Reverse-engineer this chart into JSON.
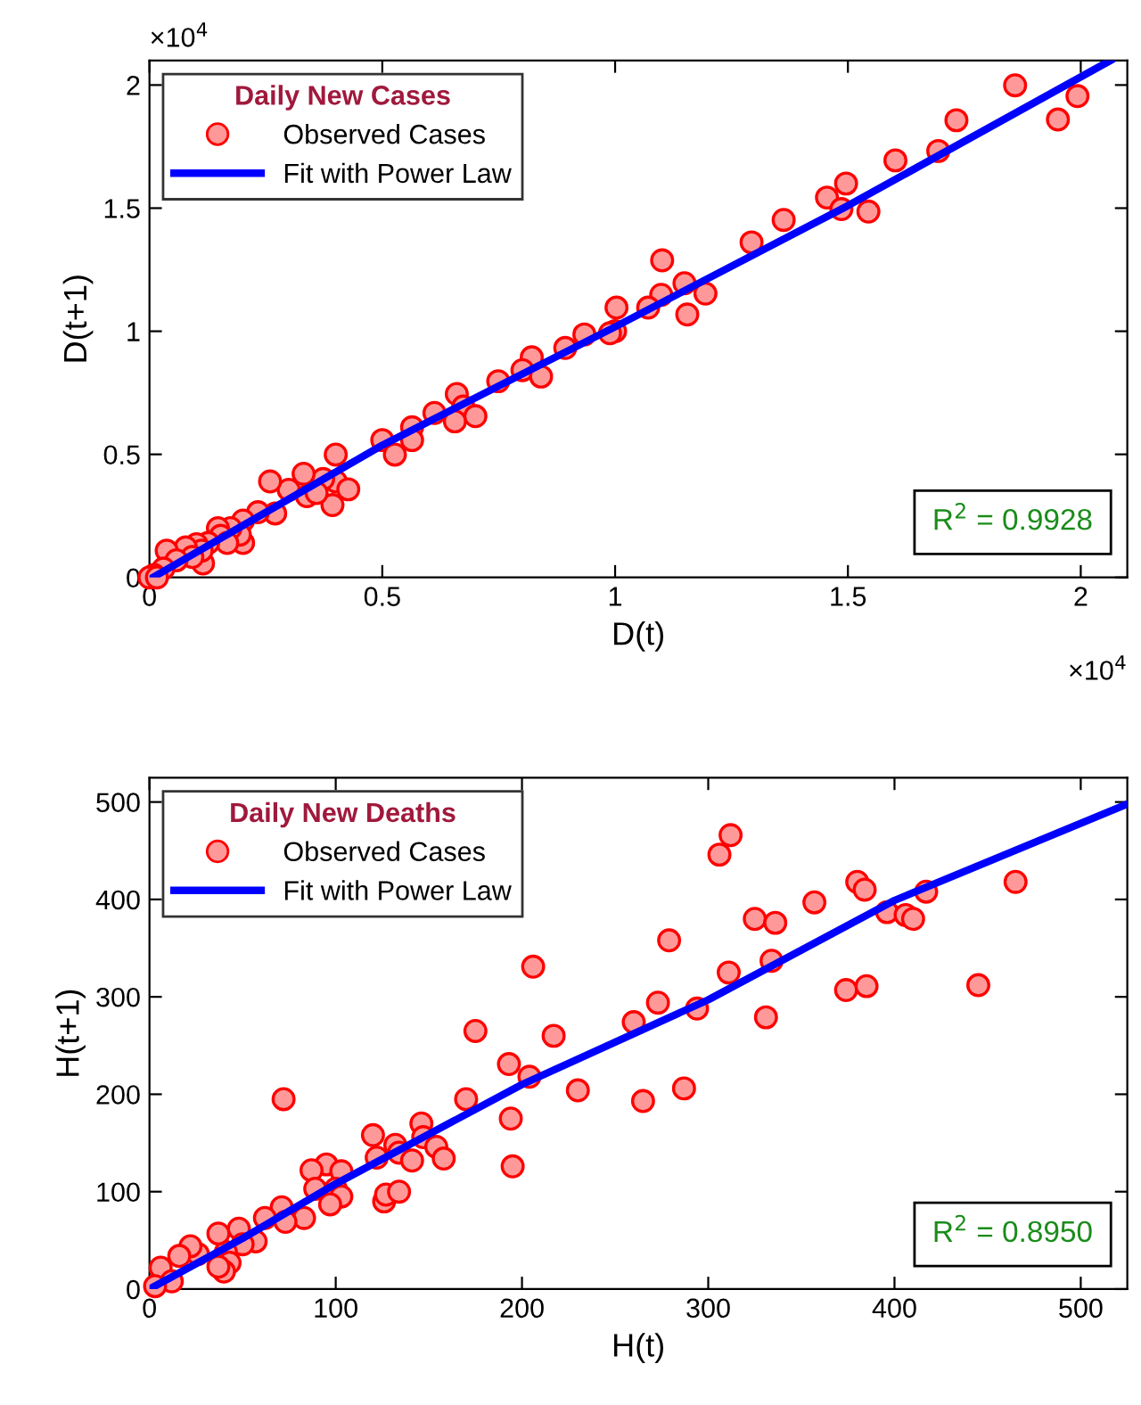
{
  "chart_data": [
    {
      "type": "scatter",
      "xlabel": "D(t)",
      "ylabel": "D(t+1)",
      "legend_title": "Daily New Cases",
      "legend": "top left",
      "grid": false,
      "xlim": [
        0,
        2.1
      ],
      "ylim": [
        0,
        2.1
      ],
      "xticks": [
        0,
        0.5,
        1,
        1.5,
        2
      ],
      "yticks": [
        0,
        0.5,
        1,
        1.5,
        2
      ],
      "annotations": [
        "×10$^{4}$",
        "×10$^{4}$",
        "R$^{2}$ = 0.9928"
      ],
      "series": [
        {
          "name": "Observed Cases",
          "marker": "circle",
          "color": "#ff9999",
          "x": [
            1.859,
            1.993,
            1.951,
            1.733,
            1.694,
            1.602,
            1.496,
            1.455,
            1.486,
            1.544,
            1.362,
            1.293,
            1.101,
            1.149,
            1.099,
            1.194,
            1.071,
            1.155,
            1.003,
            1.0,
            0.989,
            0.934,
            0.893,
            0.821,
            0.801,
            0.841,
            0.749,
            0.66,
            0.674,
            0.656,
            0.7,
            0.612,
            0.564,
            0.564,
            0.5,
            0.527,
            0.4,
            0.4,
            0.427,
            0.393,
            0.373,
            0.331,
            0.299,
            0.259,
            0.338,
            0.359,
            0.27,
            0.233,
            0.201,
            0.201,
            0.194,
            0.174,
            0.147,
            0.153,
            0.167,
            0.126,
            0.101,
            0.115,
            0.112,
            0.078,
            0.092,
            0.037,
            0.058,
            0.03,
            0.01,
            0.0,
            0.016
          ],
          "values": [
            1.999,
            1.955,
            1.86,
            1.857,
            1.732,
            1.694,
            1.6,
            1.543,
            1.496,
            1.486,
            1.452,
            1.361,
            1.288,
            1.195,
            1.148,
            1.153,
            1.096,
            1.068,
            1.096,
            1.0,
            0.992,
            0.987,
            0.932,
            0.894,
            0.842,
            0.816,
            0.797,
            0.745,
            0.694,
            0.634,
            0.655,
            0.668,
            0.61,
            0.558,
            0.558,
            0.499,
            0.499,
            0.39,
            0.358,
            0.294,
            0.4,
            0.421,
            0.356,
            0.39,
            0.33,
            0.343,
            0.26,
            0.265,
            0.231,
            0.14,
            0.174,
            0.2,
            0.2,
            0.169,
            0.14,
            0.14,
            0.135,
            0.057,
            0.109,
            0.122,
            0.083,
            0.109,
            0.07,
            0.036,
            0.01,
            0.0,
            0.0
          ]
        },
        {
          "name": "Fit with Power Law",
          "type": "line",
          "color": "#0000ff",
          "x": [
            0.007,
            0.5,
            1,
            1.5,
            2.064
          ],
          "values": [
            0,
            0.537,
            1.018,
            1.51,
            2.1
          ]
        }
      ]
    },
    {
      "type": "scatter",
      "xlabel": "H(t)",
      "ylabel": "H(t+1)",
      "legend_title": "Daily New Deaths",
      "legend": "top left",
      "grid": false,
      "xlim": [
        0,
        525
      ],
      "ylim": [
        0,
        525
      ],
      "xticks": [
        0,
        100,
        200,
        300,
        400,
        500
      ],
      "yticks": [
        0,
        100,
        200,
        300,
        400,
        500
      ],
      "annotations": [
        "R$^{2}$ = 0.8950"
      ],
      "series": [
        {
          "name": "Observed Cases",
          "marker": "circle",
          "color": "#ff9999",
          "x": [
            312,
            306,
            465,
            380,
            384,
            417,
            357,
            325,
            336,
            396,
            406,
            410,
            279,
            206,
            334,
            311,
            374,
            385,
            445,
            294,
            273,
            260,
            331,
            175,
            217,
            193,
            204,
            230,
            287,
            265,
            170,
            72,
            194,
            195,
            146,
            120,
            122,
            132,
            134,
            141,
            147,
            154,
            158,
            95,
            103,
            87,
            89,
            100,
            103,
            97,
            126,
            127,
            134,
            83,
            71,
            73,
            62,
            57,
            48,
            50,
            41,
            43,
            40,
            37,
            37,
            26,
            22,
            16,
            6,
            12,
            3
          ],
          "values": [
            466,
            446,
            418,
            418,
            410,
            408,
            397,
            380,
            376,
            387,
            384,
            380,
            358,
            331,
            337,
            325,
            307,
            311,
            312,
            288,
            294,
            274,
            279,
            265,
            260,
            231,
            218,
            204,
            206,
            193,
            195,
            195,
            175,
            126,
            170,
            158,
            135,
            148,
            140,
            132,
            156,
            146,
            134,
            128,
            121,
            122,
            103,
            103,
            95,
            87,
            90,
            97,
            100,
            73,
            84,
            69,
            73,
            49,
            62,
            46,
            38,
            27,
            18,
            23,
            57,
            36,
            44,
            34,
            22,
            8,
            3
          ]
        },
        {
          "name": "Fit with Power Law",
          "type": "line",
          "color": "#0000ff",
          "x": [
            0,
            50,
            100,
            200,
            300,
            400,
            525
          ],
          "values": [
            0,
            52,
            108,
            210,
            297,
            399,
            498
          ]
        }
      ]
    }
  ]
}
